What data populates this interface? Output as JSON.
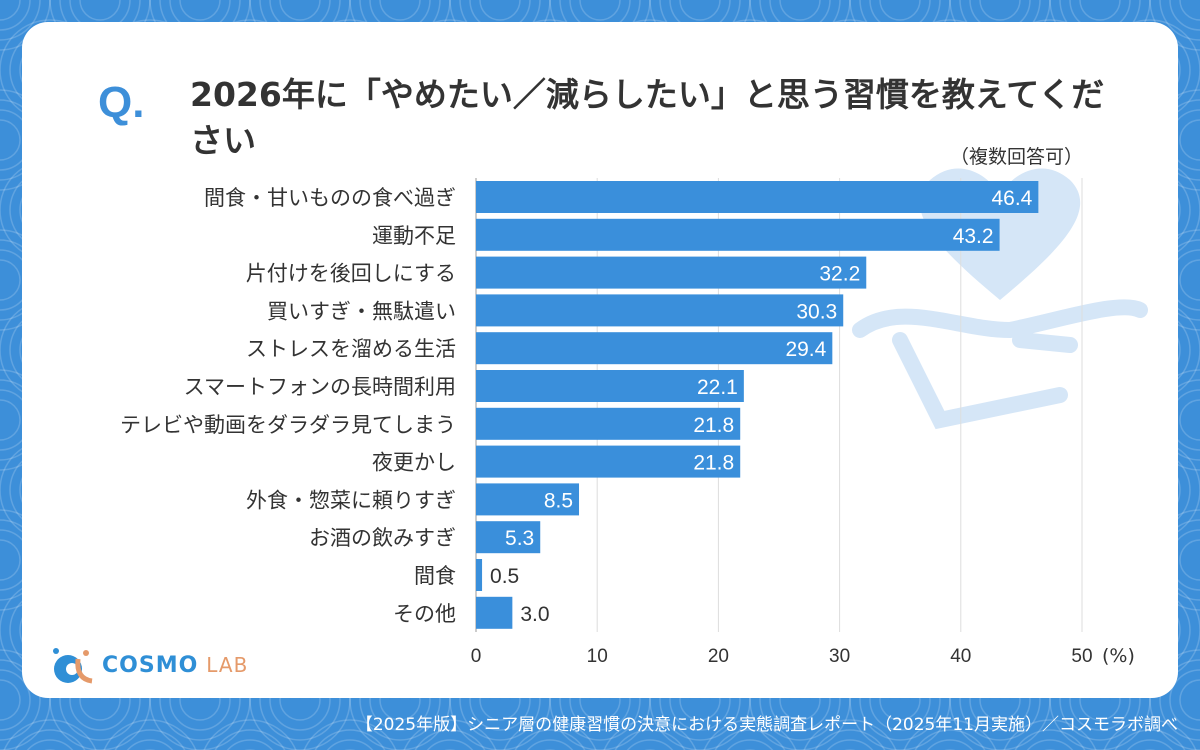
{
  "question_mark": "Q.",
  "title": "2026年に「やめたい／減らしたい」と思う習慣を教えてください",
  "note": "（複数回答可）",
  "footer": "【2025年版】シニア層の健康習慣の決意における実態調査レポート（2025年11月実施）／コスモラボ調べ",
  "logo": {
    "brand": "COSMO",
    "sub": "LAB"
  },
  "colors": {
    "bar": "#3a8fdb",
    "background": "#3d8fd9",
    "accent": "#e59a6a"
  },
  "chart_data": {
    "type": "bar",
    "orientation": "horizontal",
    "title": "2026年に「やめたい／減らしたい」と思う習慣を教えてください",
    "categories": [
      "間食・甘いものの食べ過ぎ",
      "運動不足",
      "片付けを後回しにする",
      "買いすぎ・無駄遣い",
      "ストレスを溜める生活",
      "スマートフォンの長時間利用",
      "テレビや動画をダラダラ見てしまう",
      "夜更かし",
      "外食・惣菜に頼りすぎ",
      "お酒の飲みすぎ",
      "間食",
      "その他"
    ],
    "values": [
      46.4,
      43.2,
      32.2,
      30.3,
      29.4,
      22.1,
      21.8,
      21.8,
      8.5,
      5.3,
      0.5,
      3.0
    ],
    "value_labels": [
      "46.4",
      "43.2",
      "32.2",
      "30.3",
      "29.4",
      "22.1",
      "21.8",
      "21.8",
      "8.5",
      "5.3",
      "0.5",
      "3.0"
    ],
    "xlim": [
      0,
      50
    ],
    "xticks": [
      "0",
      "10",
      "20",
      "30",
      "40",
      "50"
    ],
    "xlabel": "(%)",
    "grid": true
  }
}
